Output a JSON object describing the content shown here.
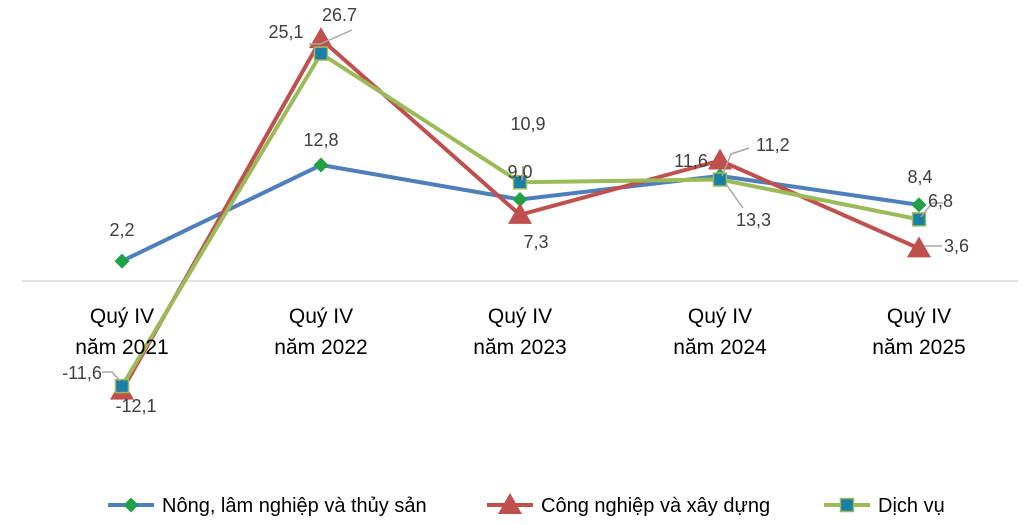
{
  "chart_data": {
    "type": "line",
    "title": "",
    "categories": [
      [
        "Quý IV",
        "năm 2021"
      ],
      [
        "Quý IV",
        "năm 2022"
      ],
      [
        "Quý IV",
        "năm 2023"
      ],
      [
        "Quý IV",
        "năm 2024"
      ],
      [
        "Quý IV",
        "năm 2025"
      ]
    ],
    "ylim": [
      -20,
      30
    ],
    "grid": false,
    "legend_position": "bottom",
    "series": [
      {
        "name": "Nông, lâm nghiệp và thủy sản",
        "color": "#4F7EBD",
        "marker": "diamond",
        "marker_color": "#1FA246",
        "values": [
          2.2,
          12.8,
          9.0,
          11.6,
          8.4
        ],
        "labels": [
          "2,2",
          "12,8",
          "9,0",
          "11,6",
          "8,4"
        ]
      },
      {
        "name": "Công nghiệp và xây dựng",
        "color": "#C0504D",
        "marker": "triangle",
        "marker_color": "#C0504D",
        "values": [
          -12.1,
          26.7,
          7.3,
          13.3,
          3.6
        ],
        "labels": [
          "-12,1",
          "26.7",
          "7,3",
          "13,3",
          "3,6"
        ]
      },
      {
        "name": "Dịch vụ",
        "color": "#9BBB59",
        "marker": "square",
        "marker_color": "#1A7FA6",
        "values": [
          -11.6,
          25.1,
          10.9,
          11.2,
          6.8
        ],
        "labels": [
          "-11,6",
          "25,1",
          "10,9",
          "11,2",
          "6,8"
        ]
      }
    ],
    "annotations": [
      "26.7"
    ]
  }
}
